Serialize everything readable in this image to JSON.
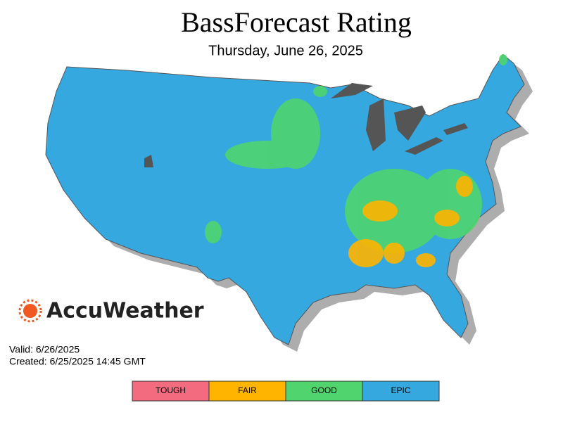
{
  "header": {
    "title": "BassForecast Rating",
    "subtitle": "Thursday, June 26, 2025"
  },
  "brand": "AccuWeather",
  "info": {
    "valid": "Valid: 6/26/2025",
    "created": "Created: 6/25/2025 14:45 GMT"
  },
  "legend": [
    {
      "label": "TOUGH",
      "color": "#f26b7f"
    },
    {
      "label": "FAIR",
      "color": "#ffb400"
    },
    {
      "label": "GOOD",
      "color": "#4fd46e"
    },
    {
      "label": "EPIC",
      "color": "#35a8e0"
    }
  ]
}
